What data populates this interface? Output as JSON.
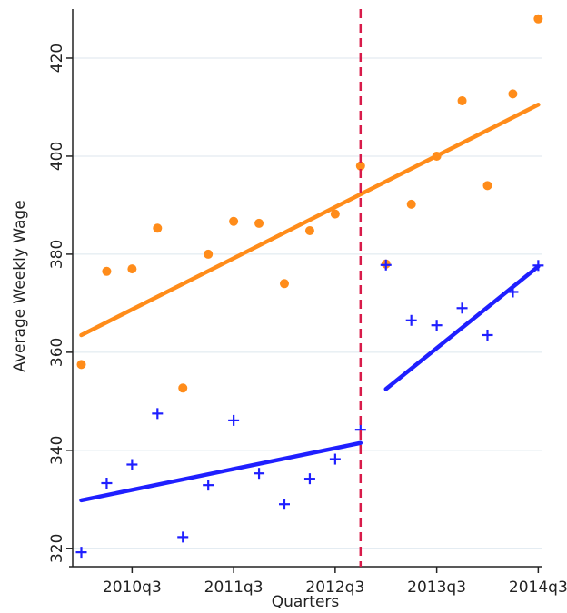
{
  "chart_data": {
    "type": "scatter",
    "title": "",
    "xlabel": "Quarters",
    "ylabel": "Average Weekly Wage",
    "ylim": [
      317,
      430
    ],
    "xlim": [
      "2010q1",
      "2014q3"
    ],
    "x_ticks": [
      "2010q3",
      "2011q3",
      "2012q3",
      "2013q3",
      "2014q3"
    ],
    "y_ticks": [
      320,
      340,
      360,
      380,
      400,
      420
    ],
    "grid": "horizontal",
    "colors": {
      "orange": "#ff8c1a",
      "blue": "#1f1fff",
      "cutoff": "#d81b4a",
      "grid": "#dce6ee"
    },
    "cutoff_x": "2012q4",
    "x": [
      "2010q1",
      "2010q2",
      "2010q3",
      "2010q4",
      "2011q1",
      "2011q2",
      "2011q3",
      "2011q4",
      "2012q1",
      "2012q2",
      "2012q3",
      "2012q4",
      "2013q1",
      "2013q2",
      "2013q3",
      "2013q4",
      "2014q1",
      "2014q2",
      "2014q3"
    ],
    "series": [
      {
        "marker": "dot",
        "color": "#ff8c1a",
        "values": [
          357.5,
          376.5,
          377,
          385.3,
          352.7,
          380,
          386.7,
          386.3,
          374,
          384.8,
          388.2,
          398,
          378,
          390.2,
          400,
          411.3,
          394,
          412.7,
          428
        ]
      },
      {
        "marker": "plus",
        "color": "#1f1fff",
        "values": [
          319.2,
          333.3,
          337.1,
          347.5,
          322.3,
          332.9,
          346.1,
          335.3,
          329,
          334.2,
          338.2,
          344.2,
          377.8,
          366.5,
          365.5,
          369,
          363.5,
          372.3,
          377.7
        ]
      }
    ],
    "fit_lines": [
      {
        "color": "#ff8c1a",
        "from": {
          "x": "2010q1",
          "y": 363.5
        },
        "to": {
          "x": "2014q3",
          "y": 410.5
        }
      },
      {
        "color": "#1f1fff",
        "from": {
          "x": "2010q1",
          "y": 329.8
        },
        "to": {
          "x": "2012q4",
          "y": 341.5
        }
      },
      {
        "color": "#1f1fff",
        "from": {
          "x": "2013q1",
          "y": 352.5
        },
        "to": {
          "x": "2014q3",
          "y": 377.5
        }
      }
    ]
  }
}
